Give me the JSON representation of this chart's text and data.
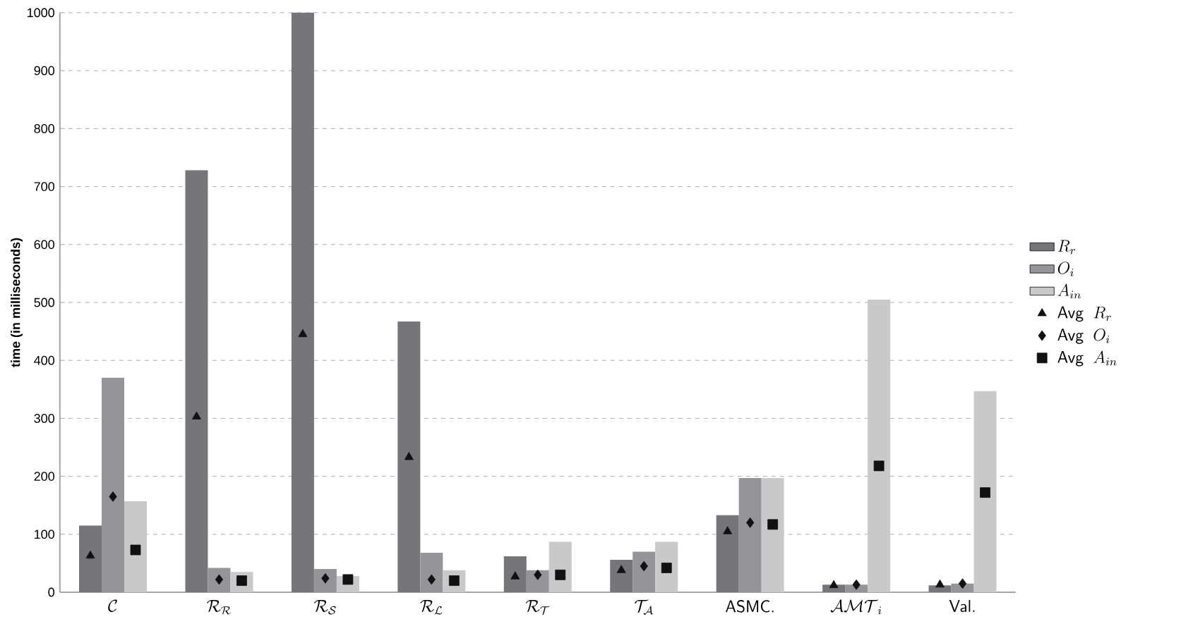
{
  "chart_data": {
    "type": "bar",
    "ylabel": "time (in milliseconds)",
    "categories": [
      "\\mathcal{C}",
      "\\mathcal{R}_{\\mathcal{R}}",
      "\\mathcal{R}_{\\mathcal{S}}",
      "\\mathcal{R}_{\\mathcal{L}}",
      "\\mathcal{R}_{\\mathcal{T}}",
      "\\mathcal{T}_{\\mathcal{A}}",
      "\\textsf{ASMC.}",
      "\\mathcal{AMT}_i",
      "\\textsf{Val.}"
    ],
    "series": [
      {
        "name": "R_r",
        "color": "#75767a",
        "values": [
          115,
          728,
          1000,
          467,
          62,
          56,
          133,
          13,
          12
        ]
      },
      {
        "name": "O_i",
        "color": "#949598",
        "values": [
          370,
          42,
          40,
          68,
          38,
          70,
          197,
          13,
          15
        ]
      },
      {
        "name": "A_{in}",
        "color": "#c8c9cb",
        "values": [
          157,
          35,
          28,
          38,
          87,
          87,
          197,
          505,
          347
        ]
      },
      {
        "name": "\\textsf{Avg}\\;\\; R_r",
        "type": "scatter",
        "marker": "triangle",
        "color": "#111111",
        "values": [
          63,
          303,
          445,
          233,
          27,
          38,
          105,
          12,
          13
        ]
      },
      {
        "name": "\\textsf{Avg}\\;\\; O_i",
        "type": "scatter",
        "marker": "diamond",
        "color": "#111111",
        "values": [
          165,
          22,
          24,
          22,
          30,
          45,
          120,
          13,
          15
        ]
      },
      {
        "name": "\\textsf{Avg}\\;\\; A_{in}",
        "type": "scatter",
        "marker": "square",
        "color": "#111111",
        "values": [
          73,
          20,
          22,
          20,
          30,
          42,
          117,
          218,
          172
        ]
      }
    ],
    "ylim": [
      0,
      1000
    ],
    "yticks": [
      0,
      100,
      200,
      300,
      400,
      500,
      600,
      700,
      800,
      900,
      1000
    ],
    "grid": "y",
    "legend": "right"
  }
}
